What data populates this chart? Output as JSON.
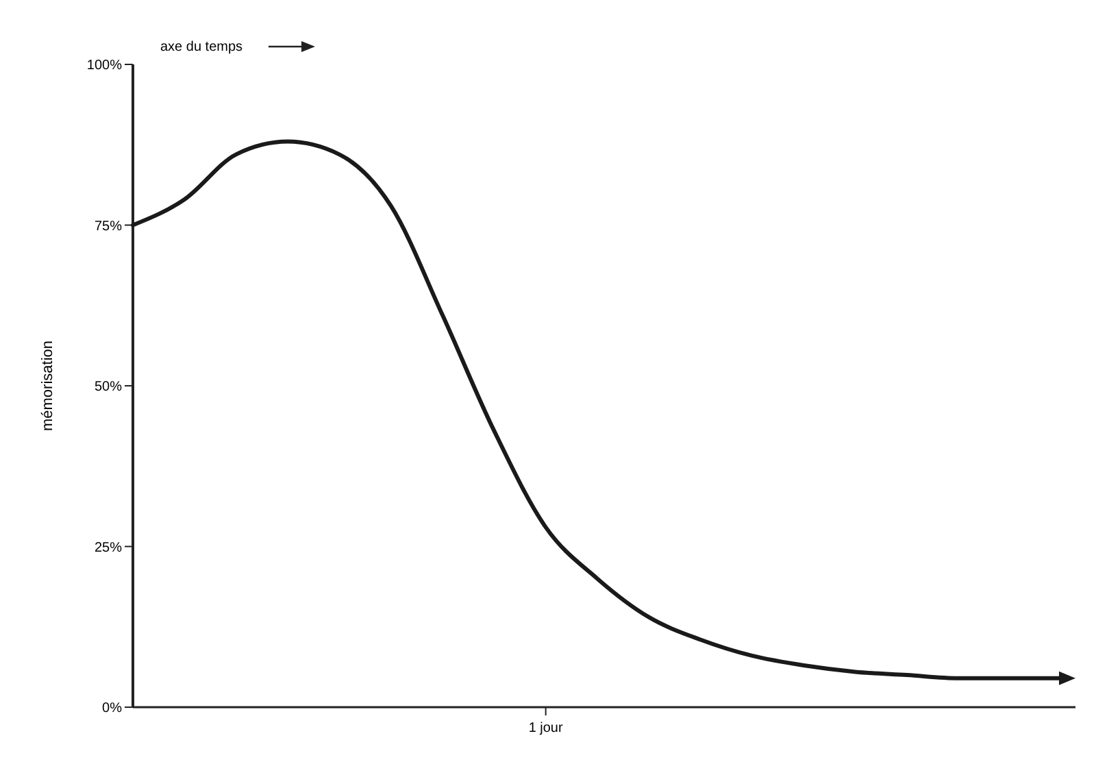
{
  "chart_data": {
    "type": "line",
    "ylabel": "mémorisation",
    "annotations": [
      "axe du temps"
    ],
    "categories": [
      null,
      null,
      null,
      null,
      null,
      null,
      null,
      null,
      "1 jour",
      null,
      null,
      null,
      null,
      null,
      null,
      null,
      null,
      null,
      null
    ],
    "series": [
      {
        "color": "#1a1a1a",
        "values": [
          75,
          79,
          86,
          88,
          86,
          78,
          61,
          43,
          28,
          20,
          14,
          10.5,
          8,
          6.5,
          5.5,
          5,
          4.5,
          4.5,
          4.5
        ]
      }
    ],
    "ylim": [
      0,
      100
    ],
    "yticks": [
      {
        "value": 0,
        "label": "0%"
      },
      {
        "value": 25,
        "label": "25%"
      },
      {
        "value": 50,
        "label": "50%"
      },
      {
        "value": 75,
        "label": "75%"
      },
      {
        "value": 100,
        "label": "100%"
      }
    ],
    "grid": false,
    "marker": "none",
    "line_style": "solid"
  }
}
